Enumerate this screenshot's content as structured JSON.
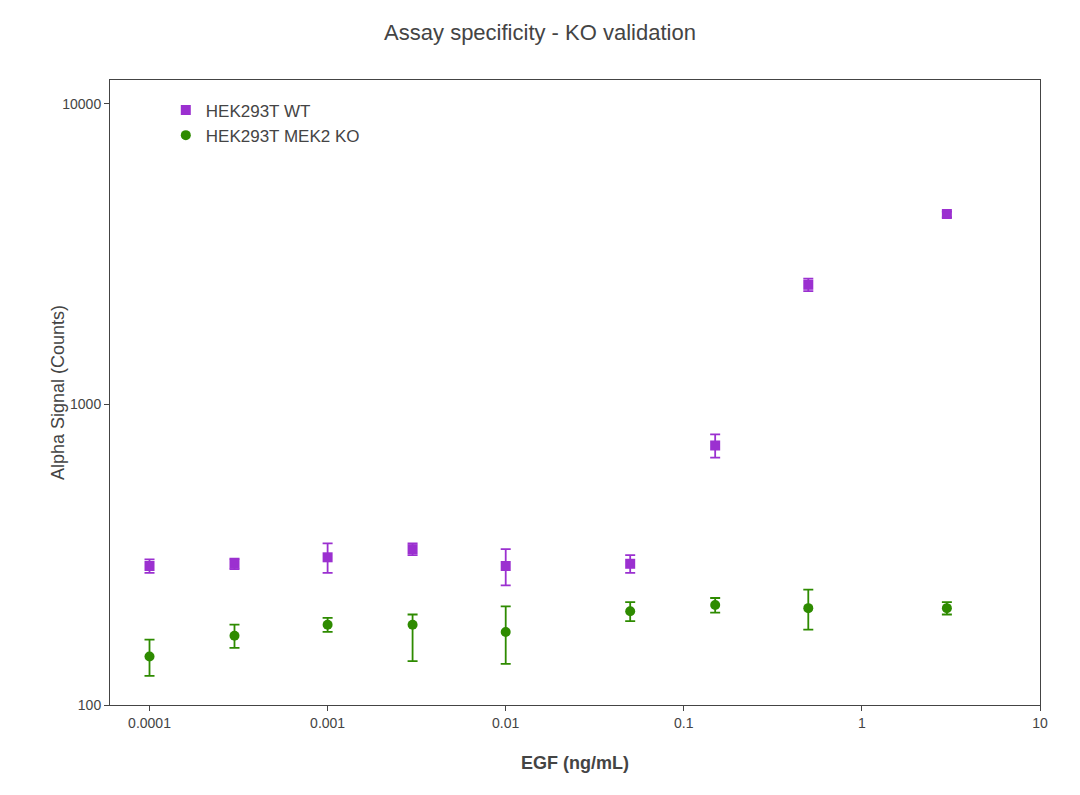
{
  "chart_data": {
    "type": "scatter",
    "title": "Assay specificity - KO validation",
    "xlabel": "EGF (ng/mL)",
    "ylabel": "Alpha Signal (Counts)",
    "log": true,
    "grid": false,
    "legend": "upper left",
    "xlim": [
      6e-05,
      10
    ],
    "ylim": [
      100,
      12000
    ],
    "xticks": [
      0.0001,
      0.001,
      0.01,
      0.1,
      1,
      10
    ],
    "yticks": [
      100,
      1000,
      10000
    ],
    "series": [
      {
        "name": "HEK293T WT",
        "color": "#9B30D0",
        "marker": "square",
        "x": [
          0.0001,
          0.0003,
          0.001,
          0.003,
          0.01,
          0.05,
          0.15,
          0.5,
          3.0
        ],
        "values": [
          290,
          295,
          310,
          330,
          290,
          295,
          730,
          2500,
          4300
        ],
        "error_lo": [
          15,
          12,
          35,
          15,
          40,
          20,
          65,
          120,
          110
        ],
        "error_hi": [
          15,
          12,
          35,
          15,
          40,
          20,
          65,
          120,
          80
        ]
      },
      {
        "name": "HEK293T MEK2 KO",
        "color": "#2E8B00",
        "marker": "circle",
        "x": [
          0.0001,
          0.0003,
          0.001,
          0.003,
          0.01,
          0.05,
          0.15,
          0.5,
          3.0
        ],
        "values": [
          145,
          170,
          185,
          185,
          175,
          205,
          215,
          210,
          210
        ],
        "error_lo": [
          20,
          15,
          10,
          45,
          38,
          15,
          12,
          32,
          10
        ],
        "error_hi": [
          20,
          15,
          10,
          15,
          38,
          15,
          12,
          32,
          10
        ]
      }
    ]
  }
}
